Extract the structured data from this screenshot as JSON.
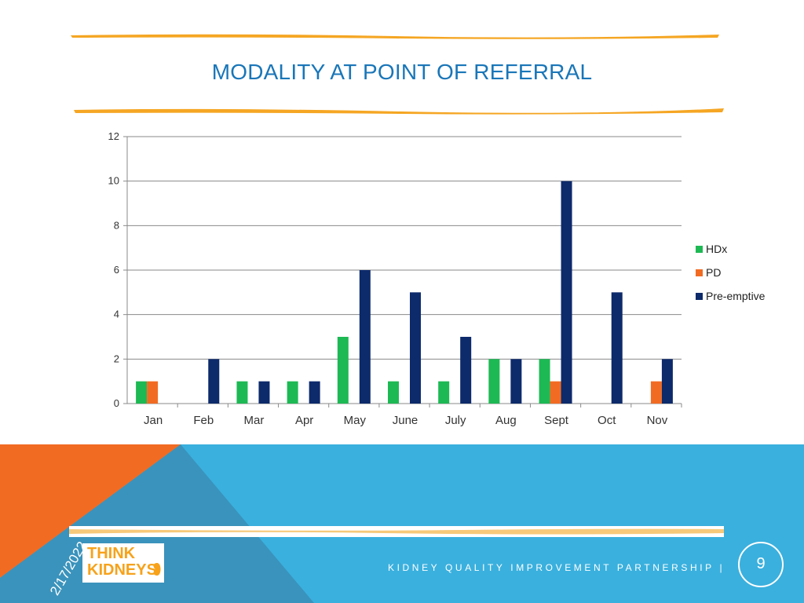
{
  "slide": {
    "title": "MODALITY AT POINT OF REFERRAL",
    "date": "2/17/2022",
    "footer": "KIDNEY QUALITY IMPROVEMENT PARTNERSHIP |",
    "page_number": "9",
    "logo": {
      "line1": "THINK",
      "line2": "KIDNEYS"
    }
  },
  "colors": {
    "title": "#1976b8",
    "footer_blue": "#3ab0de",
    "footer_orange": "#f26b22",
    "brush": "#f5a623"
  },
  "chart_data": {
    "type": "bar",
    "categories": [
      "Jan",
      "Feb",
      "Mar",
      "Apr",
      "May",
      "June",
      "July",
      "Aug",
      "Sept",
      "Oct",
      "Nov"
    ],
    "series": [
      {
        "name": "HDx",
        "color": "#1db954",
        "values": [
          1,
          0,
          1,
          1,
          3,
          1,
          1,
          2,
          2,
          0,
          0
        ]
      },
      {
        "name": "PD",
        "color": "#f26b22",
        "values": [
          1,
          0,
          0,
          0,
          0,
          0,
          0,
          0,
          1,
          0,
          1
        ]
      },
      {
        "name": "Pre-emptive",
        "color": "#0d2a6b",
        "values": [
          0,
          2,
          1,
          1,
          6,
          5,
          3,
          2,
          10,
          5,
          2
        ]
      }
    ],
    "ylim": [
      0,
      12
    ],
    "yticks": [
      0,
      2,
      4,
      6,
      8,
      10,
      12
    ],
    "grid": true,
    "legend": "right"
  }
}
